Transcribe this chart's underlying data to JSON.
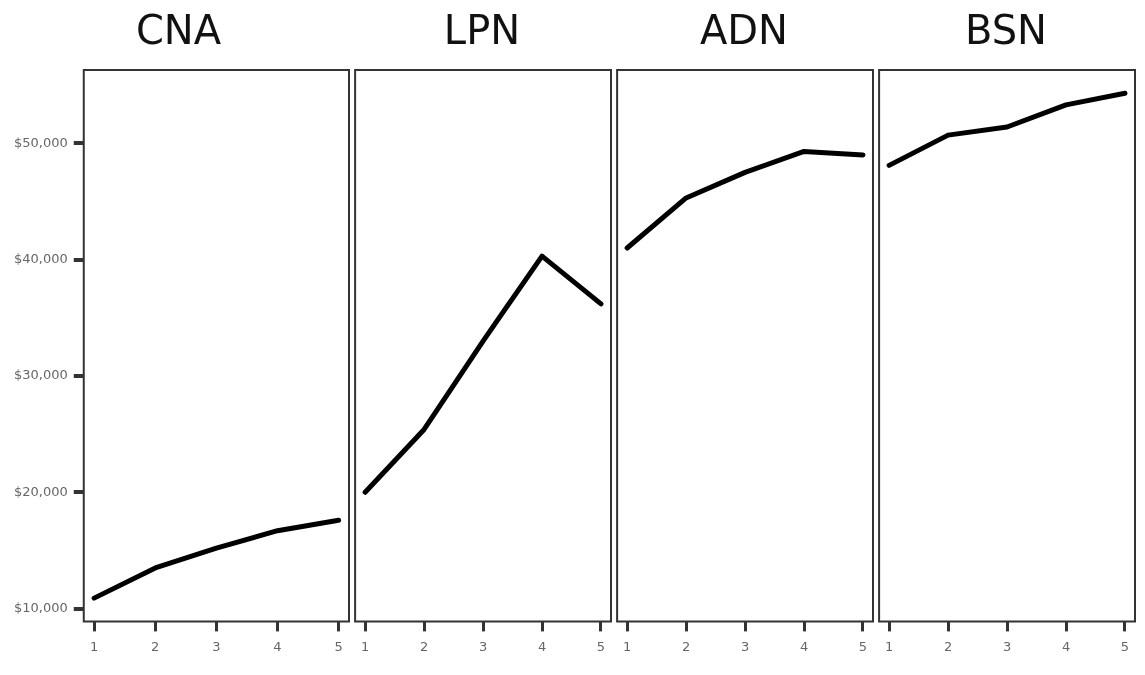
{
  "chart_data": [
    {
      "type": "line",
      "title": "CNA",
      "x": [
        1,
        2,
        3,
        4,
        5
      ],
      "values": [
        10900,
        13500,
        15200,
        16700,
        17600
      ],
      "color": "#000000",
      "xlim": [
        0.83,
        5.17
      ],
      "xticks": [
        1,
        2,
        3,
        4,
        5
      ],
      "ylim": [
        8900,
        56300
      ],
      "yticks": [
        {
          "value": 10000,
          "label": "$10,000"
        },
        {
          "value": 20000,
          "label": "$20,000"
        },
        {
          "value": 30000,
          "label": "$30,000"
        },
        {
          "value": 40000,
          "label": "$40,000"
        },
        {
          "value": 50000,
          "label": "$50,000"
        }
      ],
      "grid": false,
      "legend": false,
      "marker": "none",
      "line_style": "solid"
    },
    {
      "type": "line",
      "title": "LPN",
      "x": [
        1,
        2,
        3,
        4,
        5
      ],
      "values": [
        20000,
        25400,
        33000,
        40300,
        36200
      ],
      "color": "#000000",
      "xlim": [
        0.83,
        5.17
      ],
      "xticks": [
        1,
        2,
        3,
        4,
        5
      ],
      "ylim": [
        8900,
        56300
      ],
      "tick_labels": "x",
      "grid": false,
      "legend": false,
      "marker": "none",
      "line_style": "solid"
    },
    {
      "type": "line",
      "title": "ADN",
      "x": [
        1,
        2,
        3,
        4,
        5
      ],
      "values": [
        41000,
        45300,
        47500,
        49300,
        49000
      ],
      "color": "#000000",
      "xlim": [
        0.83,
        5.17
      ],
      "xticks": [
        1,
        2,
        3,
        4,
        5
      ],
      "ylim": [
        8900,
        56300
      ],
      "tick_labels": "x",
      "grid": false,
      "legend": false,
      "marker": "none",
      "line_style": "solid"
    },
    {
      "type": "line",
      "title": "BSN",
      "x": [
        1,
        2,
        3,
        4,
        5
      ],
      "values": [
        48100,
        50700,
        51400,
        53300,
        54300
      ],
      "color": "#000000",
      "xlim": [
        0.83,
        5.17
      ],
      "xticks": [
        1,
        2,
        3,
        4,
        5
      ],
      "ylim": [
        8900,
        56300
      ],
      "tick_labels": "x",
      "grid": false,
      "legend": false,
      "marker": "none",
      "line_style": "solid"
    }
  ]
}
